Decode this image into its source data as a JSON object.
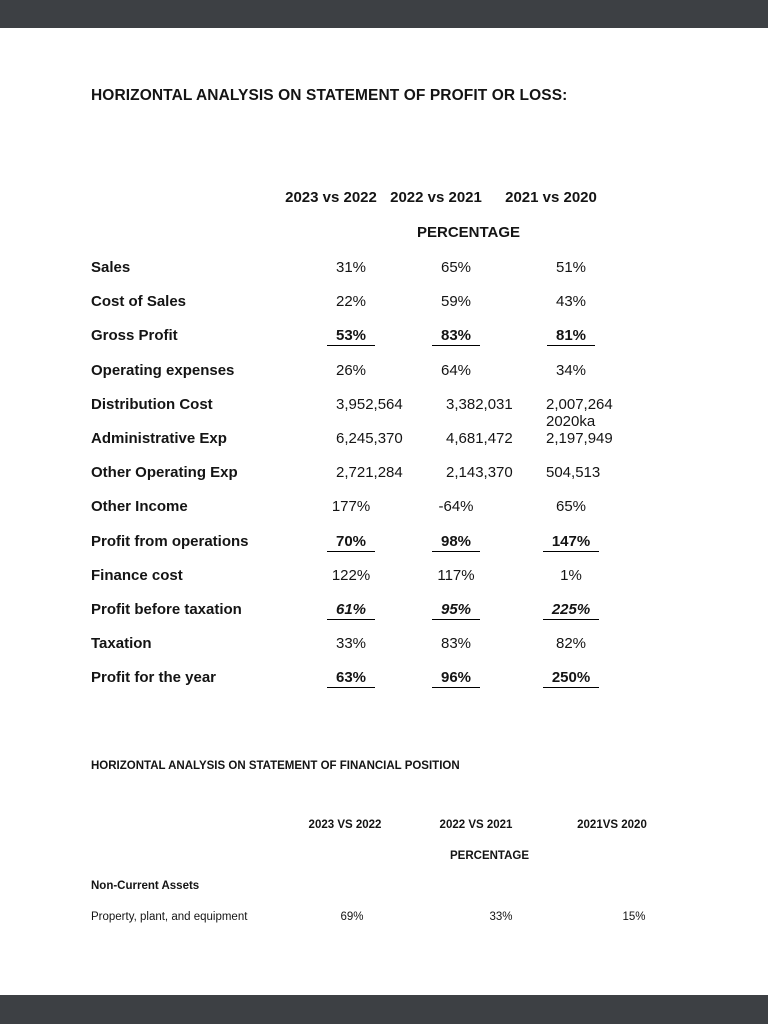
{
  "section1": {
    "title": "HORIZONTAL ANALYSIS ON STATEMENT OF PROFIT OR LOSS:",
    "columns": [
      "2023 vs 2022",
      "2022 vs 2021",
      "2021 vs 2020"
    ],
    "subheader": "PERCENTAGE",
    "rows": [
      {
        "label": "Sales",
        "values": [
          "31%",
          "65%",
          "51%"
        ]
      },
      {
        "label": "Cost of Sales",
        "values": [
          "22%",
          "59%",
          "43%"
        ]
      },
      {
        "label": "Gross Profit",
        "values": [
          "53%",
          "83%",
          "81%"
        ]
      },
      {
        "label": "Operating expenses",
        "values": [
          "26%",
          "64%",
          "34%"
        ]
      },
      {
        "label": "Distribution Cost",
        "values": [
          "3,952,564",
          "3,382,031",
          "2,007,264 2020ka"
        ]
      },
      {
        "label": "Administrative Exp",
        "values": [
          "6,245,370",
          "4,681,472",
          "2,197,949"
        ]
      },
      {
        "label": "Other Operating Exp",
        "values": [
          "2,721,284",
          "2,143,370",
          "504,513"
        ]
      },
      {
        "label": "Other Income",
        "values": [
          "177%",
          "-64%",
          "65%"
        ]
      },
      {
        "label": "Profit from operations",
        "values": [
          "70%",
          "98%",
          "147%"
        ]
      },
      {
        "label": "Finance cost",
        "values": [
          "122%",
          "117%",
          "1%"
        ]
      },
      {
        "label": "Profit before taxation",
        "values": [
          "61%",
          "95%",
          "225%"
        ]
      },
      {
        "label": "Taxation",
        "values": [
          "33%",
          "83%",
          "82%"
        ]
      },
      {
        "label": "Profit for the year",
        "values": [
          "63%",
          "96%",
          "250%"
        ]
      }
    ]
  },
  "section2": {
    "title": "HORIZONTAL ANALYSIS ON STATEMENT OF FINANCIAL POSITION",
    "columns": [
      "2023 VS 2022",
      "2022 VS 2021",
      "2021VS 2020"
    ],
    "subheader": "PERCENTAGE",
    "group": "Non-Current Assets",
    "rows": [
      {
        "label": "Property, plant, and equipment",
        "values": [
          "69%",
          "33%",
          "15%"
        ]
      }
    ]
  }
}
